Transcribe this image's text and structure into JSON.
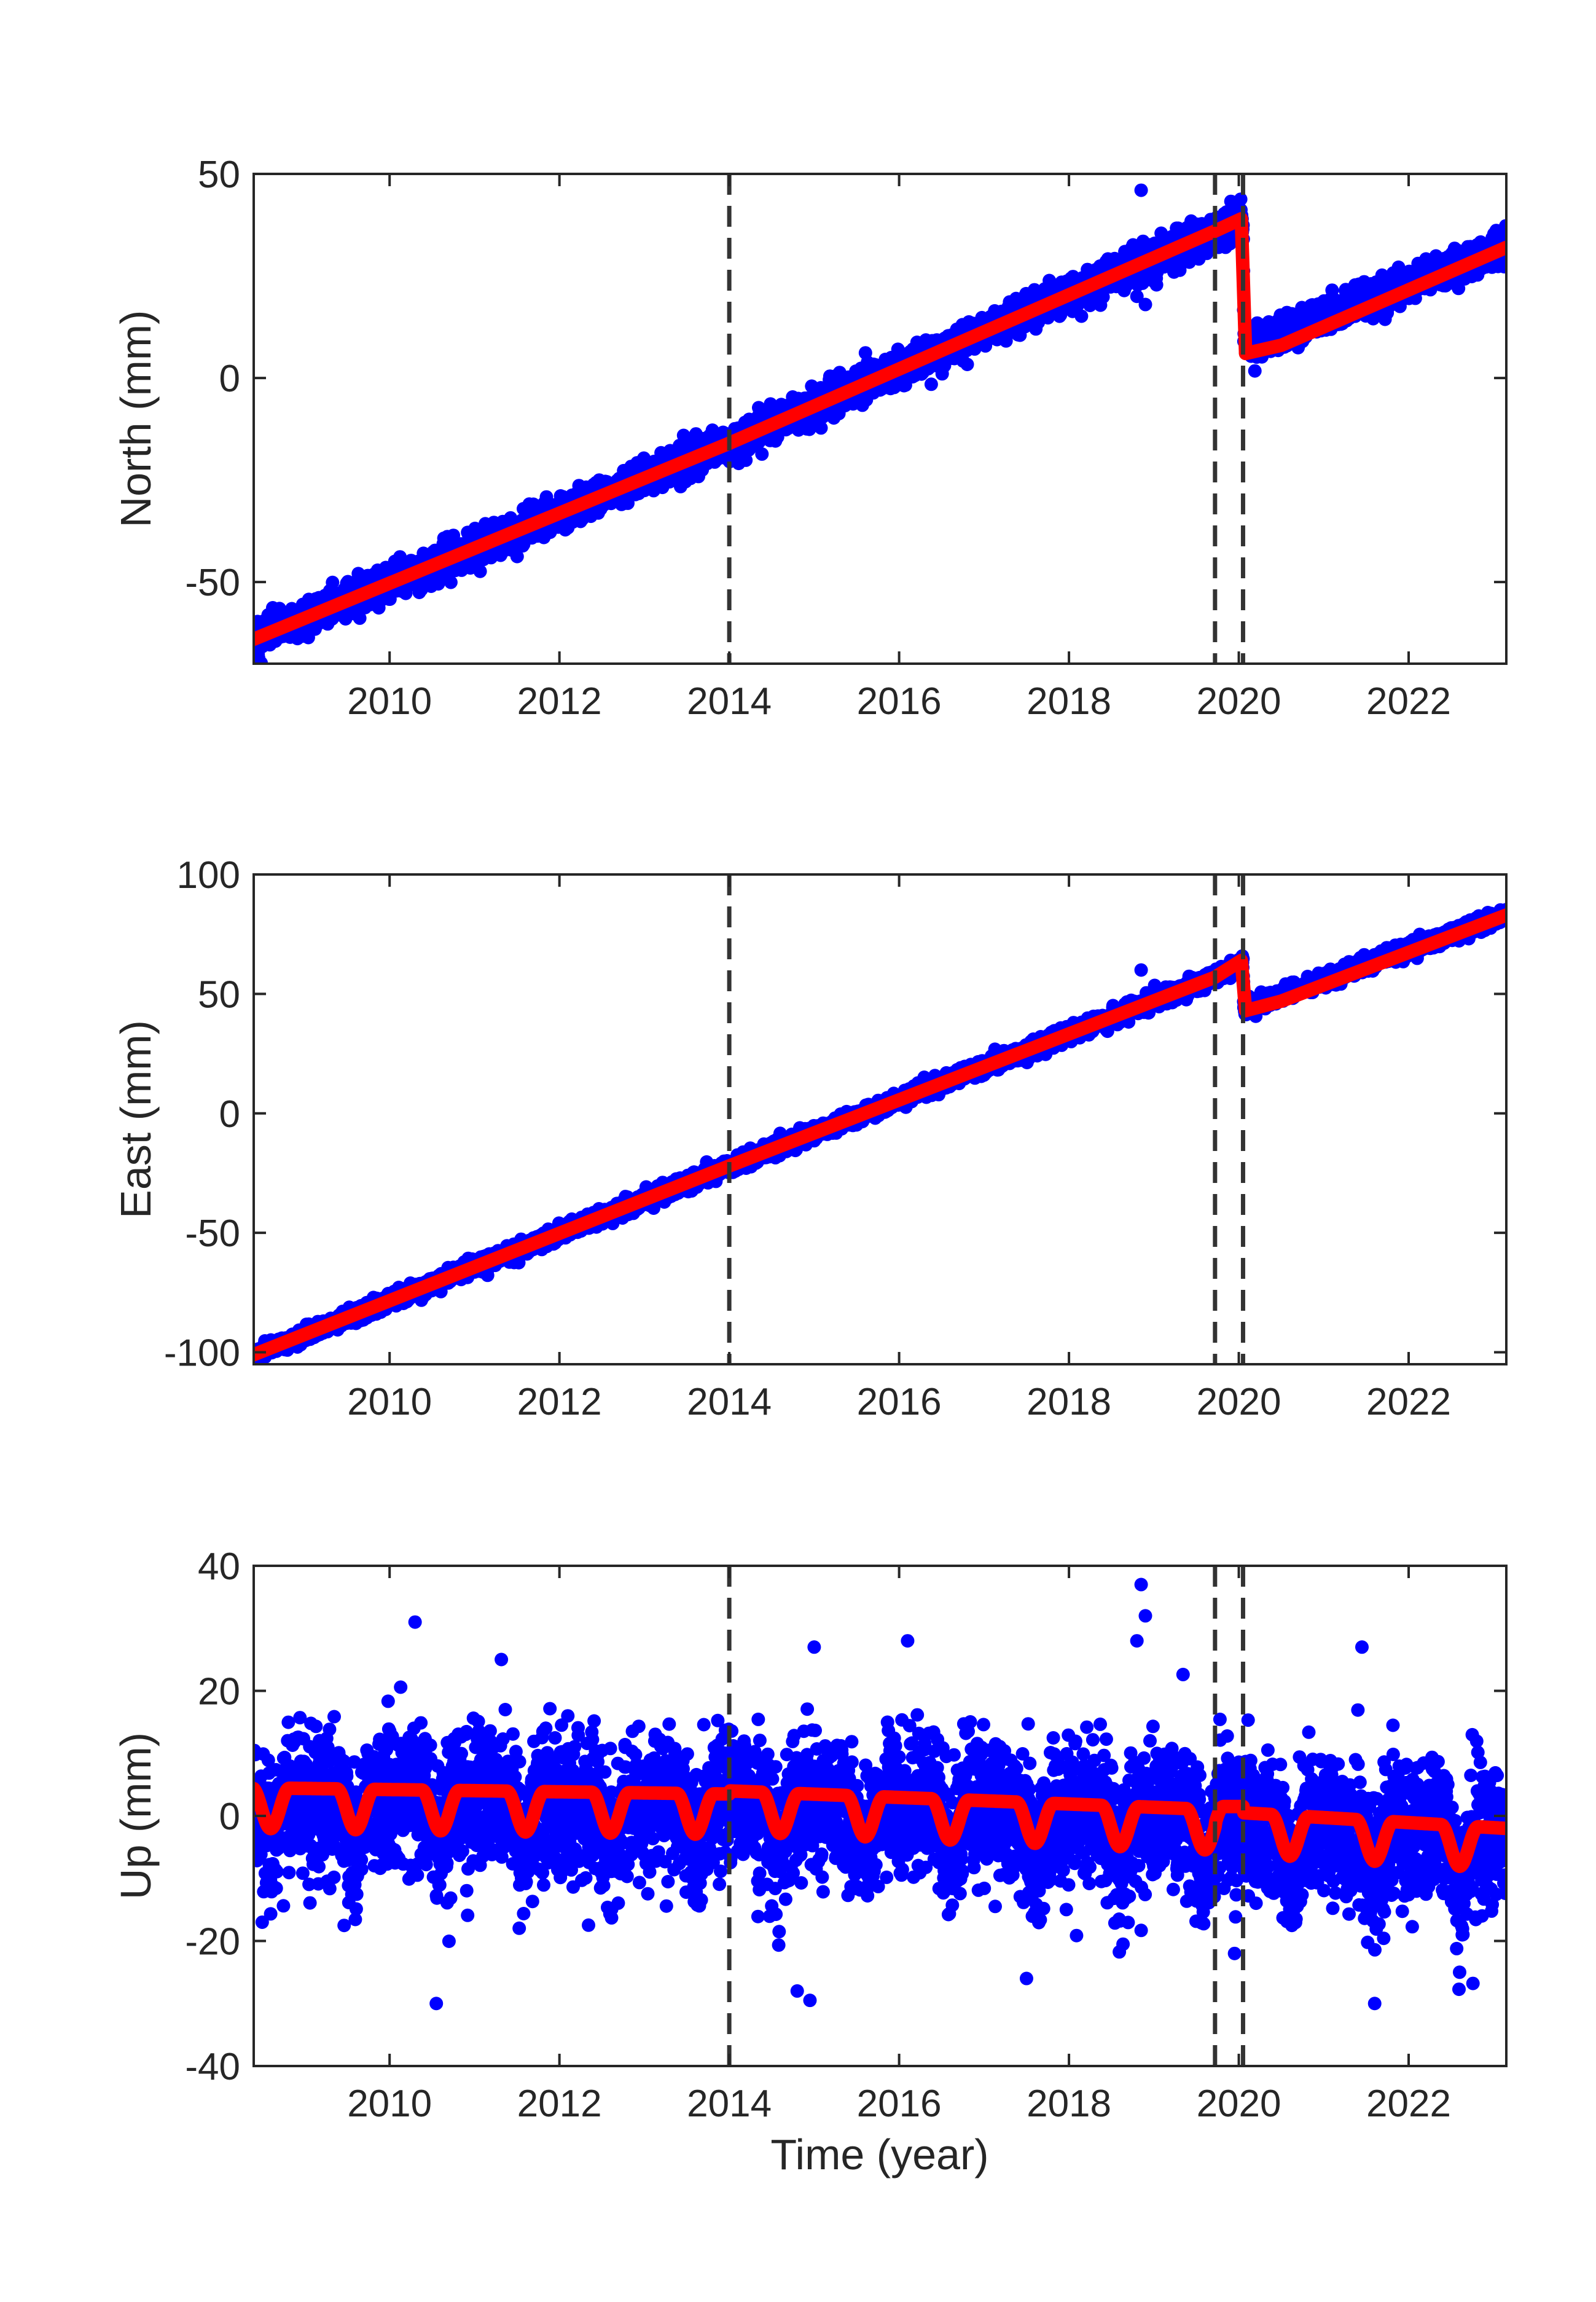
{
  "figure": {
    "xlabel": "Time (year)",
    "colors": {
      "observed": "#0000ff",
      "model": "#ff0000",
      "event_line": "#333333",
      "axes": "#262626"
    }
  },
  "chart_data": [
    {
      "type": "scatter",
      "name": "north",
      "ylabel": "North (mm)",
      "xlabel": "",
      "xlim": [
        2008.4,
        2023.15
      ],
      "ylim": [
        -70,
        50
      ],
      "xticks": [
        2010,
        2012,
        2014,
        2016,
        2018,
        2020,
        2022
      ],
      "xtick_labels": [
        "2010",
        "2012",
        "2014",
        "2016",
        "2018",
        "2020",
        "2022"
      ],
      "yticks": [
        -50,
        0,
        50
      ],
      "ytick_labels": [
        "-50",
        "0",
        "50"
      ],
      "event_lines": [
        2014.0,
        2019.72,
        2020.05
      ],
      "observed_trend": [
        [
          2008.4,
          -64
        ],
        [
          2014.0,
          -16
        ],
        [
          2019.72,
          36
        ],
        [
          2020.05,
          39
        ],
        [
          2020.06,
          8
        ],
        [
          2023.15,
          32
        ]
      ],
      "observed_noise_mm": 2.0,
      "model": [
        [
          2008.4,
          -64
        ],
        [
          2014.0,
          -16
        ],
        [
          2019.72,
          36
        ],
        [
          2020.03,
          39
        ],
        [
          2020.08,
          6
        ],
        [
          2020.5,
          8
        ],
        [
          2023.15,
          32
        ]
      ],
      "outliers": [
        [
          2018.85,
          46
        ],
        [
          2018.8,
          20
        ],
        [
          2018.9,
          18
        ]
      ]
    },
    {
      "type": "scatter",
      "name": "east",
      "ylabel": "East (mm)",
      "xlabel": "",
      "xlim": [
        2008.4,
        2023.15
      ],
      "ylim": [
        -105,
        100
      ],
      "xticks": [
        2010,
        2012,
        2014,
        2016,
        2018,
        2020,
        2022
      ],
      "xtick_labels": [
        "2010",
        "2012",
        "2014",
        "2016",
        "2018",
        "2020",
        "2022"
      ],
      "yticks": [
        -100,
        -50,
        0,
        50,
        100
      ],
      "ytick_labels": [
        "-100",
        "-50",
        "0",
        "50",
        "100"
      ],
      "event_lines": [
        2014.0,
        2019.72,
        2020.05
      ],
      "observed_trend": [
        [
          2008.4,
          -101
        ],
        [
          2014.0,
          -22
        ],
        [
          2019.72,
          57
        ],
        [
          2020.05,
          63
        ],
        [
          2020.06,
          44
        ],
        [
          2023.15,
          83
        ]
      ],
      "observed_noise_mm": 1.6,
      "model": [
        [
          2008.4,
          -101
        ],
        [
          2014.0,
          -22
        ],
        [
          2019.72,
          57
        ],
        [
          2020.03,
          64
        ],
        [
          2020.08,
          43
        ],
        [
          2020.5,
          47
        ],
        [
          2023.15,
          83
        ]
      ],
      "outliers": [
        [
          2018.85,
          60
        ]
      ]
    },
    {
      "type": "scatter",
      "name": "up",
      "ylabel": "Up (mm)",
      "xlabel": "Time (year)",
      "xlim": [
        2008.4,
        2023.15
      ],
      "ylim": [
        -40,
        40
      ],
      "xticks": [
        2010,
        2012,
        2014,
        2016,
        2018,
        2020,
        2022
      ],
      "xtick_labels": [
        "2010",
        "2012",
        "2014",
        "2016",
        "2018",
        "2020",
        "2022"
      ],
      "yticks": [
        -40,
        -20,
        0,
        20,
        40
      ],
      "ytick_labels": [
        "-40",
        "-20",
        "0",
        "20",
        "40"
      ],
      "event_lines": [
        2014.0,
        2019.72,
        2020.05
      ],
      "observed_noise_mm": 5.5,
      "model_seasonal": {
        "segments": [
          {
            "from": 2008.4,
            "to": 2014.0,
            "top_start": 4.5,
            "top_end": 3.5,
            "amplitude": 6.5
          },
          {
            "from": 2014.0,
            "to": 2019.72,
            "top_start": 4.0,
            "top_end": 1.0,
            "amplitude": 6.5
          },
          {
            "from": 2019.72,
            "to": 2020.05,
            "top_start": 1.5,
            "top_end": 1.5,
            "amplitude": 6.5
          },
          {
            "from": 2020.05,
            "to": 2023.15,
            "top_start": 0.5,
            "top_end": -2.0,
            "amplitude": 6.5
          }
        ],
        "trough_phase": 0.6
      },
      "outliers": [
        [
          2018.85,
          37
        ],
        [
          2018.9,
          32
        ],
        [
          2018.8,
          28
        ],
        [
          2010.3,
          31
        ],
        [
          2016.1,
          28
        ],
        [
          2015.0,
          27
        ],
        [
          2021.45,
          27
        ],
        [
          2010.55,
          -30
        ],
        [
          2014.8,
          -28
        ],
        [
          2014.95,
          -29.5
        ],
        [
          2017.5,
          -26
        ],
        [
          2021.6,
          -30
        ],
        [
          2022.6,
          -25
        ],
        [
          2019.95,
          -22
        ],
        [
          2008.5,
          -17
        ]
      ]
    }
  ]
}
